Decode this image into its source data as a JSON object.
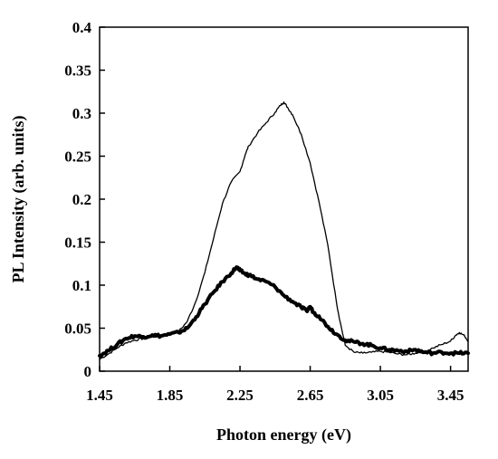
{
  "chart_data": {
    "type": "line",
    "title": "",
    "xlabel": "Photon energy (eV)",
    "ylabel": "PL Intensity (arb. units)",
    "xlim": [
      1.45,
      3.55
    ],
    "ylim": [
      0,
      0.4
    ],
    "xticks": [
      {
        "value": 1.45,
        "label": "1.45"
      },
      {
        "value": 1.85,
        "label": "1.85"
      },
      {
        "value": 2.25,
        "label": "2.25"
      },
      {
        "value": 2.65,
        "label": "2.65"
      },
      {
        "value": 3.05,
        "label": "3.05"
      },
      {
        "value": 3.45,
        "label": "3.45"
      }
    ],
    "yticks": [
      {
        "value": 0,
        "label": "0"
      },
      {
        "value": 0.05,
        "label": "0.05"
      },
      {
        "value": 0.1,
        "label": "0.1"
      },
      {
        "value": 0.15,
        "label": "0.15"
      },
      {
        "value": 0.2,
        "label": "0.2"
      },
      {
        "value": 0.25,
        "label": "0.25"
      },
      {
        "value": 0.3,
        "label": "0.3"
      },
      {
        "value": 0.35,
        "label": "0.35"
      },
      {
        "value": 0.4,
        "label": "0.4"
      }
    ],
    "grid": false,
    "legend": "none",
    "series": [
      {
        "style": "thin",
        "color": "#000000",
        "x": [
          1.45,
          1.5,
          1.55,
          1.6,
          1.65,
          1.7,
          1.75,
          1.8,
          1.85,
          1.9,
          1.95,
          2.0,
          2.05,
          2.1,
          2.15,
          2.2,
          2.25,
          2.28,
          2.3,
          2.35,
          2.4,
          2.45,
          2.48,
          2.5,
          2.52,
          2.55,
          2.6,
          2.65,
          2.7,
          2.75,
          2.8,
          2.82,
          2.85,
          2.9,
          2.95,
          3.0,
          3.05,
          3.1,
          3.15,
          3.2,
          3.25,
          3.3,
          3.35,
          3.4,
          3.45,
          3.48,
          3.5,
          3.53,
          3.55
        ],
        "y": [
          0.014,
          0.02,
          0.027,
          0.033,
          0.036,
          0.038,
          0.04,
          0.041,
          0.043,
          0.046,
          0.058,
          0.082,
          0.115,
          0.155,
          0.195,
          0.22,
          0.232,
          0.252,
          0.262,
          0.277,
          0.289,
          0.301,
          0.309,
          0.313,
          0.307,
          0.298,
          0.275,
          0.242,
          0.197,
          0.147,
          0.08,
          0.058,
          0.03,
          0.022,
          0.021,
          0.022,
          0.023,
          0.022,
          0.02,
          0.019,
          0.021,
          0.023,
          0.027,
          0.031,
          0.035,
          0.042,
          0.045,
          0.041,
          0.035
        ]
      },
      {
        "style": "thick",
        "color": "#000000",
        "x": [
          1.45,
          1.5,
          1.55,
          1.6,
          1.65,
          1.7,
          1.75,
          1.8,
          1.85,
          1.9,
          1.95,
          2.0,
          2.05,
          2.1,
          2.15,
          2.2,
          2.23,
          2.25,
          2.28,
          2.3,
          2.35,
          2.4,
          2.45,
          2.5,
          2.55,
          2.6,
          2.63,
          2.65,
          2.67,
          2.7,
          2.75,
          2.8,
          2.85,
          2.9,
          2.95,
          3.0,
          3.05,
          3.1,
          3.15,
          3.2,
          3.25,
          3.3,
          3.35,
          3.4,
          3.45,
          3.5,
          3.55
        ],
        "y": [
          0.018,
          0.024,
          0.031,
          0.038,
          0.041,
          0.04,
          0.042,
          0.041,
          0.043,
          0.045,
          0.05,
          0.063,
          0.078,
          0.092,
          0.104,
          0.114,
          0.121,
          0.117,
          0.113,
          0.112,
          0.107,
          0.104,
          0.098,
          0.088,
          0.081,
          0.074,
          0.07,
          0.075,
          0.068,
          0.064,
          0.052,
          0.043,
          0.036,
          0.034,
          0.032,
          0.03,
          0.027,
          0.025,
          0.024,
          0.023,
          0.025,
          0.022,
          0.021,
          0.022,
          0.021,
          0.021,
          0.021
        ]
      }
    ]
  }
}
